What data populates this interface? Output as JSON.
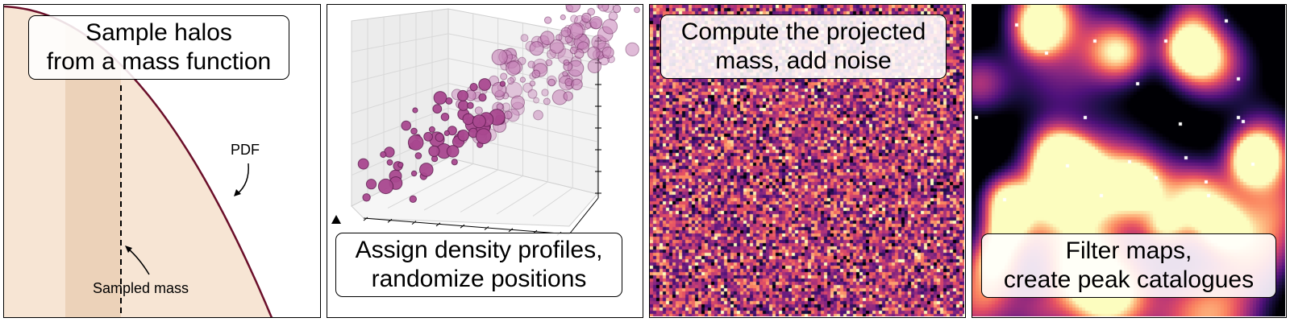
{
  "panels": [
    {
      "id": "mass-function",
      "caption": [
        "Sample halos",
        "from a mass function"
      ],
      "pdf_label": "PDF",
      "sampled_label": "Sampled mass",
      "colors": {
        "curve": "#6b0f2a",
        "fill": "#f7e5d4",
        "band": "#ecd2b9"
      }
    },
    {
      "id": "halo-positions",
      "caption": [
        "Assign density profiles,",
        "randomize positions"
      ],
      "colors": {
        "marker": "#a9488f",
        "marker_dark": "#8a2f76"
      }
    },
    {
      "id": "noise-map",
      "caption": [
        "Compute the projected",
        "mass, add noise"
      ],
      "colormap": "magma"
    },
    {
      "id": "filtered-map",
      "caption": [
        "Filter maps,",
        "create peak catalogues"
      ],
      "colormap": "magma",
      "peak_marker_color": "#ffffff"
    }
  ]
}
